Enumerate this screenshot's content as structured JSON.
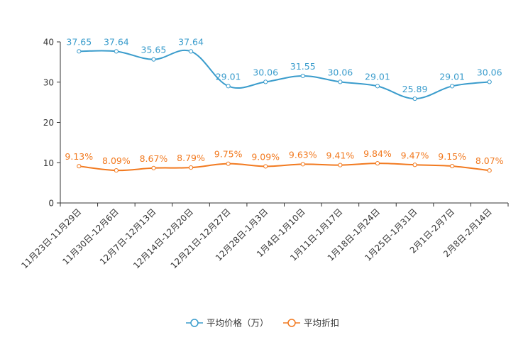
{
  "chart_data": {
    "type": "line",
    "title": "",
    "xlabel": "",
    "ylabel": "",
    "ylim": [
      0,
      40
    ],
    "yticks": [
      0,
      10,
      20,
      30,
      40
    ],
    "grid": false,
    "legend_position": "bottom-center",
    "categories": [
      "11月23日-11月29日",
      "11月30日-12月6日",
      "12月7日-12月13日",
      "12月14日-12月20日",
      "12月21日-12月27日",
      "12月28日-1月3日",
      "1月4日-1月10日",
      "1月11日-1月17日",
      "1月18日-1月24日",
      "1月25日-1月31日",
      "2月1日-2月7日",
      "2月8日-2月14日"
    ],
    "series": [
      {
        "name": "平均价格（万）",
        "color": "#3a9ccc",
        "values": [
          37.65,
          37.64,
          35.65,
          37.64,
          29.01,
          30.06,
          31.55,
          30.06,
          29.01,
          25.89,
          29.01,
          30.06
        ],
        "labels": [
          "37.65",
          "37.64",
          "35.65",
          "37.64",
          "29.01",
          "30.06",
          "31.55",
          "30.06",
          "29.01",
          "25.89",
          "29.01",
          "30.06"
        ]
      },
      {
        "name": "平均折扣",
        "color": "#f27a20",
        "values": [
          9.13,
          8.09,
          8.67,
          8.79,
          9.75,
          9.09,
          9.63,
          9.41,
          9.84,
          9.47,
          9.15,
          8.07
        ],
        "labels": [
          "9.13%",
          "8.09%",
          "8.67%",
          "8.79%",
          "9.75%",
          "9.09%",
          "9.63%",
          "9.41%",
          "9.84%",
          "9.47%",
          "9.15%",
          "8.07%"
        ]
      }
    ]
  }
}
